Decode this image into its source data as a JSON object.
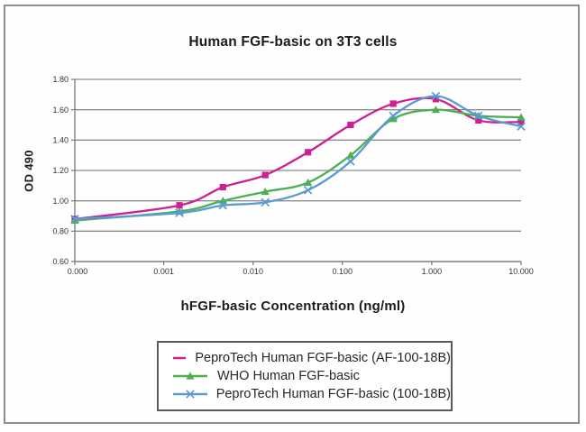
{
  "chart_data": {
    "type": "line",
    "title": "Human FGF-basic on 3T3 cells",
    "xlabel": "hFGF-basic Concentration (ng/ml)",
    "ylabel": "OD 490",
    "x_scale": "log (zero dose pinned to origin)",
    "grid": "horizontal",
    "legend_position": "bottom",
    "ylim": [
      0.6,
      1.8
    ],
    "y_ticks": [
      "0.60",
      "0.80",
      "1.00",
      "1.20",
      "1.40",
      "1.60",
      "1.80"
    ],
    "x_tick_values": [
      0,
      0.001,
      0.01,
      0.1,
      1,
      10
    ],
    "x_tick_labels": [
      "0.000",
      "0.001",
      "0.010",
      "0.100",
      "1.000",
      "10.000"
    ],
    "x": [
      0,
      0.0015,
      0.0046,
      0.0137,
      0.0412,
      0.1235,
      0.3704,
      1.111,
      3.333,
      10
    ],
    "series": [
      {
        "name": "PeproTech Human FGF-basic (AF-100-18B)",
        "color": "#ce2090",
        "marker": "square",
        "values": [
          0.88,
          0.97,
          1.09,
          1.17,
          1.32,
          1.5,
          1.64,
          1.67,
          1.53,
          1.52
        ]
      },
      {
        "name": "WHO Human FGF-basic",
        "color": "#4caf50",
        "marker": "triangle",
        "values": [
          0.87,
          0.93,
          1.0,
          1.06,
          1.12,
          1.3,
          1.54,
          1.6,
          1.56,
          1.55
        ]
      },
      {
        "name": "PeproTech Human FGF-basic (100-18B)",
        "color": "#5b9bd5",
        "marker": "x",
        "values": [
          0.88,
          0.92,
          0.97,
          0.99,
          1.07,
          1.26,
          1.56,
          1.69,
          1.56,
          1.49
        ]
      }
    ],
    "style_colors": {
      "gridline": "#8c8c8c",
      "axis": "#777777",
      "tick_text": "#333333",
      "frame_border": "#8f8f8f",
      "legend_border": "#5a5a5a"
    }
  }
}
